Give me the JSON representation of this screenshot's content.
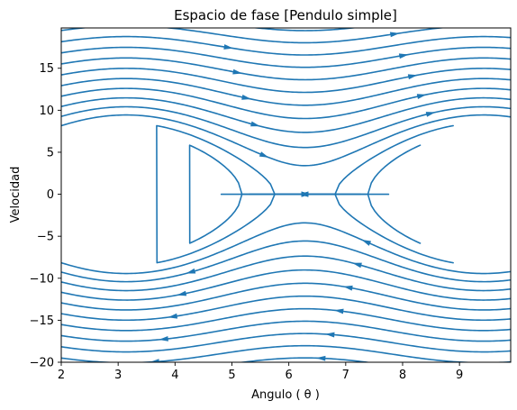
{
  "chart_data": {
    "type": "streamplot",
    "title": "Espacio de fase [Pendulo simple]",
    "xlabel": "Angulo ( θ )",
    "ylabel": "Velocidad",
    "xlim": [
      2,
      9.9
    ],
    "ylim": [
      -20,
      19.8
    ],
    "xticks": [
      2,
      3,
      4,
      5,
      6,
      7,
      8,
      9
    ],
    "yticks": [
      -20,
      -15,
      -10,
      -5,
      0,
      5,
      10,
      15
    ],
    "grid": false,
    "center": [
      6.283,
      0
    ],
    "stream_color": "#1f77b4",
    "field": "dθ/dt = ω, dω/dt = -k·sin(θ)",
    "separatrix_amplitude": 8.8,
    "streamlines": [
      {
        "kind": "closed",
        "c": 0.06
      },
      {
        "kind": "closed",
        "c": 0.22
      },
      {
        "kind": "closed",
        "c": 0.45
      },
      {
        "kind": "closed",
        "c": 0.72
      },
      {
        "kind": "closed",
        "c": 0.93
      },
      {
        "kind": "open",
        "c": 1.15,
        "dir": 1
      },
      {
        "kind": "open",
        "c": 1.4,
        "dir": 1
      },
      {
        "kind": "open",
        "c": 1.7,
        "dir": 1
      },
      {
        "kind": "open",
        "c": 2.05,
        "dir": 1
      },
      {
        "kind": "open",
        "c": 2.45,
        "dir": 1
      },
      {
        "kind": "open",
        "c": 2.9,
        "dir": 1
      },
      {
        "kind": "open",
        "c": 3.4,
        "dir": 1
      },
      {
        "kind": "open",
        "c": 3.95,
        "dir": 1
      },
      {
        "kind": "open",
        "c": 4.55,
        "dir": 1
      },
      {
        "kind": "open",
        "c": 5.2,
        "dir": 1
      },
      {
        "kind": "open",
        "c": 5.9,
        "dir": 1
      },
      {
        "kind": "open",
        "c": 6.6,
        "dir": 1
      },
      {
        "kind": "open",
        "c": 7.35,
        "dir": 1
      },
      {
        "kind": "open",
        "c": 8.15,
        "dir": 1
      },
      {
        "kind": "open",
        "c": 9.0,
        "dir": 1
      },
      {
        "kind": "open",
        "c": 1.15,
        "dir": -1
      },
      {
        "kind": "open",
        "c": 1.4,
        "dir": -1
      },
      {
        "kind": "open",
        "c": 1.7,
        "dir": -1
      },
      {
        "kind": "open",
        "c": 2.05,
        "dir": -1
      },
      {
        "kind": "open",
        "c": 2.45,
        "dir": -1
      },
      {
        "kind": "open",
        "c": 2.9,
        "dir": -1
      },
      {
        "kind": "open",
        "c": 3.4,
        "dir": -1
      },
      {
        "kind": "open",
        "c": 3.95,
        "dir": -1
      },
      {
        "kind": "open",
        "c": 4.55,
        "dir": -1
      },
      {
        "kind": "open",
        "c": 5.2,
        "dir": -1
      },
      {
        "kind": "open",
        "c": 5.9,
        "dir": -1
      },
      {
        "kind": "open",
        "c": 6.6,
        "dir": -1
      },
      {
        "kind": "open",
        "c": 7.35,
        "dir": -1
      },
      {
        "kind": "open",
        "c": 8.15,
        "dir": -1
      },
      {
        "kind": "open",
        "c": 9.0,
        "dir": -1
      }
    ]
  }
}
